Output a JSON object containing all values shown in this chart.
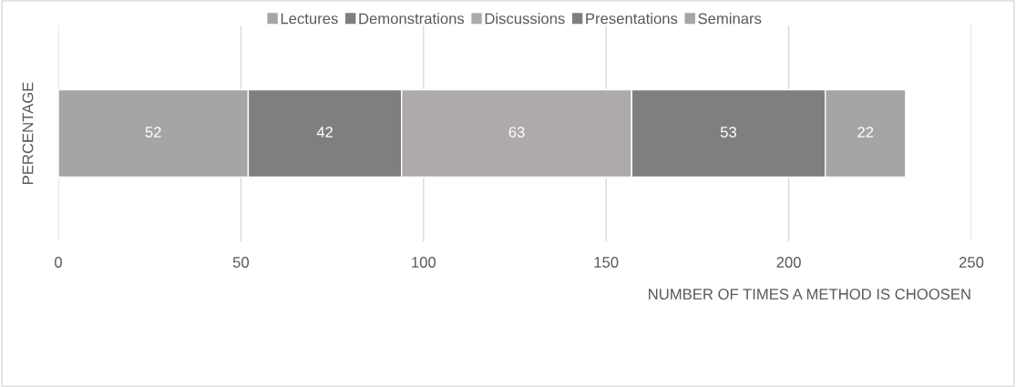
{
  "chart_data": {
    "type": "bar",
    "orientation": "horizontal",
    "stacked": true,
    "categories": [
      null
    ],
    "series": [
      {
        "name": "Lectures",
        "color": "#a5a5a5",
        "values": [
          52
        ]
      },
      {
        "name": "Demonstrations",
        "color": "#7f7f7f",
        "values": [
          42
        ]
      },
      {
        "name": "Discussions",
        "color": "#aeaaaa",
        "values": [
          63
        ]
      },
      {
        "name": "Presentations",
        "color": "#7f7f7f",
        "values": [
          53
        ]
      },
      {
        "name": "Seminars",
        "color": "#a5a5a5",
        "values": [
          22
        ]
      }
    ],
    "xlim": [
      0,
      250
    ],
    "xticks": [
      0,
      50,
      100,
      150,
      200,
      250
    ],
    "xlabel": "NUMBER OF TIMES A METHOD IS CHOOSEN",
    "ylabel": "PERCENTAGE",
    "grid": "x",
    "legend": "top",
    "data_labels": true
  }
}
